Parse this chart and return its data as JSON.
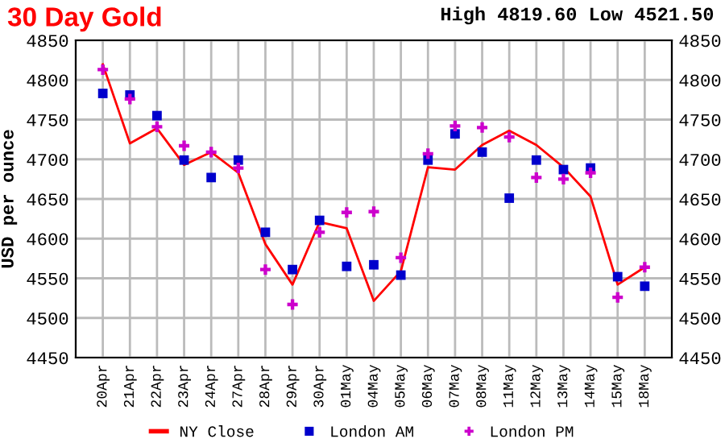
{
  "chart_data": {
    "type": "line",
    "title": "30 Day Gold",
    "subtitle": "High 4819.60 Low 4521.50",
    "ylabel": "USD per ounce",
    "categories": [
      "20Apr",
      "21Apr",
      "22Apr",
      "23Apr",
      "24Apr",
      "27Apr",
      "28Apr",
      "29Apr",
      "30Apr",
      "01May",
      "04May",
      "05May",
      "06May",
      "07May",
      "08May",
      "11May",
      "12May",
      "13May",
      "14May",
      "15May",
      "18May"
    ],
    "series": [
      {
        "name": "NY Close",
        "color": "#ff0000",
        "marker": "none",
        "values": [
          4819.6,
          4720,
          4739,
          4693,
          4709,
          4683,
          4593,
          4542,
          4621,
          4613,
          4521.5,
          4559,
          4690,
          4687,
          4718,
          4736,
          4718,
          4690,
          4653,
          4542,
          4564
        ]
      },
      {
        "name": "London AM",
        "type": "scatter",
        "color": "#0000cc",
        "marker": "square",
        "values": [
          4783,
          4781,
          4755,
          4699,
          4677,
          4699,
          4608,
          4561,
          4623,
          4565,
          4567,
          4554,
          4699,
          4732,
          4709,
          4651,
          4699,
          4687,
          4689,
          4552,
          4540
        ]
      },
      {
        "name": "London PM",
        "type": "scatter",
        "color": "#cc00cc",
        "marker": "cross",
        "values": [
          4813,
          4776,
          4741,
          4717,
          4709,
          4689,
          4561,
          4517,
          4608,
          4633,
          4634,
          4576,
          4707,
          4742,
          4740,
          4728,
          4677,
          4675,
          4683,
          4526,
          4564
        ]
      }
    ],
    "ylim": [
      4450,
      4850
    ],
    "yticks": [
      4450,
      4500,
      4550,
      4600,
      4650,
      4700,
      4750,
      4800,
      4850
    ],
    "y2lim": [
      4450,
      4850
    ],
    "y2ticks": [
      4450,
      4500,
      4550,
      4600,
      4650,
      4700,
      4750,
      4800,
      4850
    ],
    "grid": true,
    "legend": "bottom"
  }
}
